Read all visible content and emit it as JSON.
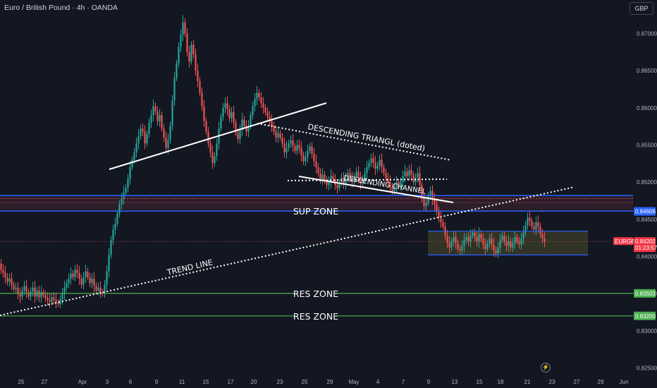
{
  "header": {
    "symbol_title": "Euro / British Pound · 4h · OANDA",
    "currency": "GBP"
  },
  "chart_data": {
    "type": "candlestick",
    "symbol": "EURGBP",
    "interval": "4h",
    "y_ticks": [
      "0.87000",
      "0.86500",
      "0.86000",
      "0.85500",
      "0.85000",
      "0.84500",
      "0.84000",
      "0.83500",
      "0.83000",
      "0.82500"
    ],
    "ylim": [
      0.8223,
      0.8745
    ],
    "x_ticks": [
      "25",
      "27",
      "Apr",
      "3",
      "6",
      "9",
      "11",
      "15",
      "17",
      "20",
      "23",
      "25",
      "29",
      "May",
      "4",
      "7",
      "9",
      "13",
      "15",
      "18",
      "21",
      "23",
      "27",
      "29",
      "Jun"
    ],
    "price_tags": [
      {
        "label": "EURGBP",
        "value": "0.84202",
        "countdown": "01:23:57",
        "color": "#f23645"
      },
      {
        "value": "0.84606",
        "color": "#2962ff"
      },
      {
        "value": "0.83503",
        "color": "#4caf50"
      },
      {
        "value": "0.83200",
        "color": "#4caf50"
      }
    ],
    "levels": {
      "sup_zone_top": 0.8482,
      "sup_zone_bottom": 0.8461,
      "res_zone_1": 0.83503,
      "res_zone_2": 0.832,
      "current": 0.84202,
      "range_box_top": 0.8434,
      "range_box_bottom": 0.8402
    },
    "annotations": {
      "descending_triangle": "DESCENDING TRIANGL (doted)",
      "descending_channel": "DESCENDING CHANNEL",
      "sup_zone": "SUP ZONE",
      "trend_line": "TREND LINE",
      "res_zone_1": "RES ZONE",
      "res_zone_2": "RES ZONE"
    },
    "colors": {
      "background": "#131722",
      "up": "#26a69a",
      "down": "#ef5350",
      "sup_zone_line": "#2962ff",
      "res_zone_line": "#4caf50",
      "annotation": "#ffffff"
    },
    "price_path": [
      [
        0,
        0.839
      ],
      [
        3,
        0.8382
      ],
      [
        6,
        0.8378
      ],
      [
        9,
        0.8372
      ],
      [
        12,
        0.8366
      ],
      [
        15,
        0.837
      ],
      [
        18,
        0.8362
      ],
      [
        21,
        0.8356
      ],
      [
        24,
        0.8358
      ],
      [
        27,
        0.8349
      ],
      [
        30,
        0.8346
      ],
      [
        33,
        0.8354
      ],
      [
        36,
        0.836
      ],
      [
        39,
        0.8352
      ],
      [
        42,
        0.8346
      ],
      [
        45,
        0.8353
      ],
      [
        48,
        0.8358
      ],
      [
        51,
        0.8346
      ],
      [
        54,
        0.8354
      ],
      [
        57,
        0.8345
      ],
      [
        60,
        0.8352
      ],
      [
        63,
        0.8348
      ],
      [
        66,
        0.8344
      ],
      [
        69,
        0.8341
      ],
      [
        72,
        0.8339
      ],
      [
        75,
        0.8345
      ],
      [
        78,
        0.8342
      ],
      [
        81,
        0.8338
      ],
      [
        84,
        0.8336
      ],
      [
        87,
        0.8342
      ],
      [
        90,
        0.835
      ],
      [
        93,
        0.8358
      ],
      [
        96,
        0.8364
      ],
      [
        99,
        0.837
      ],
      [
        102,
        0.8377
      ],
      [
        105,
        0.8372
      ],
      [
        108,
        0.8382
      ],
      [
        111,
        0.8378
      ],
      [
        114,
        0.837
      ],
      [
        117,
        0.8362
      ],
      [
        120,
        0.8372
      ],
      [
        123,
        0.838
      ],
      [
        126,
        0.8372
      ],
      [
        129,
        0.8364
      ],
      [
        132,
        0.837
      ],
      [
        135,
        0.836
      ],
      [
        138,
        0.8354
      ],
      [
        141,
        0.8358
      ],
      [
        144,
        0.8352
      ],
      [
        147,
        0.835
      ],
      [
        150,
        0.8362
      ],
      [
        153,
        0.838
      ],
      [
        156,
        0.8402
      ],
      [
        159,
        0.8422
      ],
      [
        162,
        0.8436
      ],
      [
        165,
        0.8444
      ],
      [
        168,
        0.8458
      ],
      [
        171,
        0.847
      ],
      [
        174,
        0.8478
      ],
      [
        177,
        0.8486
      ],
      [
        180,
        0.8492
      ],
      [
        183,
        0.8504
      ],
      [
        186,
        0.852
      ],
      [
        189,
        0.853
      ],
      [
        192,
        0.854
      ],
      [
        195,
        0.8552
      ],
      [
        198,
        0.8562
      ],
      [
        201,
        0.8572
      ],
      [
        204,
        0.8568
      ],
      [
        207,
        0.8552
      ],
      [
        210,
        0.8565
      ],
      [
        213,
        0.858
      ],
      [
        216,
        0.859
      ],
      [
        219,
        0.8602
      ],
      [
        222,
        0.8595
      ],
      [
        225,
        0.8582
      ],
      [
        228,
        0.859
      ],
      [
        231,
        0.8572
      ],
      [
        234,
        0.856
      ],
      [
        237,
        0.8546
      ],
      [
        240,
        0.8556
      ],
      [
        243,
        0.8576
      ],
      [
        246,
        0.861
      ],
      [
        249,
        0.864
      ],
      [
        252,
        0.866
      ],
      [
        255,
        0.8682
      ],
      [
        258,
        0.8698
      ],
      [
        261,
        0.8715
      ],
      [
        264,
        0.87
      ],
      [
        267,
        0.8675
      ],
      [
        270,
        0.8662
      ],
      [
        273,
        0.8685
      ],
      [
        276,
        0.8672
      ],
      [
        279,
        0.865
      ],
      [
        282,
        0.8636
      ],
      [
        285,
        0.862
      ],
      [
        288,
        0.8602
      ],
      [
        291,
        0.8582
      ],
      [
        294,
        0.8568
      ],
      [
        297,
        0.8552
      ],
      [
        300,
        0.854
      ],
      [
        303,
        0.8526
      ],
      [
        306,
        0.8535
      ],
      [
        309,
        0.8552
      ],
      [
        312,
        0.8572
      ],
      [
        315,
        0.8588
      ],
      [
        318,
        0.86
      ],
      [
        321,
        0.8606
      ],
      [
        324,
        0.8598
      ],
      [
        327,
        0.8586
      ],
      [
        330,
        0.8594
      ],
      [
        333,
        0.858
      ],
      [
        336,
        0.8566
      ],
      [
        339,
        0.8558
      ],
      [
        342,
        0.857
      ],
      [
        345,
        0.8584
      ],
      [
        348,
        0.8576
      ],
      [
        351,
        0.8568
      ],
      [
        354,
        0.8575
      ],
      [
        357,
        0.859
      ],
      [
        360,
        0.8602
      ],
      [
        363,
        0.8612
      ],
      [
        366,
        0.862
      ],
      [
        369,
        0.8614
      ],
      [
        372,
        0.8606
      ],
      [
        375,
        0.86
      ],
      [
        378,
        0.8594
      ],
      [
        381,
        0.8588
      ],
      [
        384,
        0.8582
      ],
      [
        387,
        0.8576
      ],
      [
        390,
        0.8568
      ],
      [
        393,
        0.856
      ],
      [
        396,
        0.8566
      ],
      [
        399,
        0.856
      ],
      [
        402,
        0.8552
      ],
      [
        405,
        0.854
      ],
      [
        408,
        0.8546
      ],
      [
        411,
        0.8552
      ],
      [
        414,
        0.8556
      ],
      [
        417,
        0.8548
      ],
      [
        420,
        0.8542
      ],
      [
        423,
        0.855
      ],
      [
        426,
        0.8546
      ],
      [
        429,
        0.8536
      ],
      [
        432,
        0.8528
      ],
      [
        435,
        0.8534
      ],
      [
        438,
        0.8542
      ],
      [
        441,
        0.8548
      ],
      [
        444,
        0.8538
      ],
      [
        447,
        0.8528
      ],
      [
        450,
        0.852
      ],
      [
        453,
        0.8512
      ],
      [
        456,
        0.8504
      ],
      [
        459,
        0.851
      ],
      [
        462,
        0.8502
      ],
      [
        465,
        0.8496
      ],
      [
        468,
        0.85
      ],
      [
        471,
        0.8508
      ],
      [
        474,
        0.8504
      ],
      [
        477,
        0.8496
      ],
      [
        480,
        0.8492
      ],
      [
        483,
        0.85
      ],
      [
        486,
        0.8506
      ],
      [
        489,
        0.8498
      ],
      [
        492,
        0.8504
      ],
      [
        495,
        0.8512
      ],
      [
        498,
        0.8506
      ],
      [
        501,
        0.85
      ],
      [
        504,
        0.8508
      ],
      [
        507,
        0.8514
      ],
      [
        510,
        0.8505
      ],
      [
        513,
        0.8498
      ],
      [
        516,
        0.8504
      ],
      [
        519,
        0.8512
      ],
      [
        522,
        0.852
      ],
      [
        525,
        0.8526
      ],
      [
        528,
        0.8532
      ],
      [
        531,
        0.8526
      ],
      [
        534,
        0.8518
      ],
      [
        537,
        0.8522
      ],
      [
        540,
        0.853
      ],
      [
        543,
        0.852
      ],
      [
        546,
        0.8512
      ],
      [
        549,
        0.8505
      ],
      [
        552,
        0.85
      ],
      [
        555,
        0.8494
      ],
      [
        558,
        0.8488
      ],
      [
        561,
        0.8492
      ],
      [
        564,
        0.85
      ],
      [
        567,
        0.8494
      ],
      [
        570,
        0.85
      ],
      [
        573,
        0.8508
      ],
      [
        576,
        0.8514
      ],
      [
        579,
        0.8508
      ],
      [
        582,
        0.8516
      ],
      [
        585,
        0.851
      ],
      [
        588,
        0.85
      ],
      [
        591,
        0.8506
      ],
      [
        594,
        0.8512
      ],
      [
        597,
        0.8496
      ],
      [
        600,
        0.8478
      ],
      [
        603,
        0.8468
      ],
      [
        606,
        0.8472
      ],
      [
        609,
        0.8482
      ],
      [
        612,
        0.8488
      ],
      [
        615,
        0.8476
      ],
      [
        618,
        0.847
      ],
      [
        621,
        0.846
      ],
      [
        624,
        0.8452
      ],
      [
        627,
        0.8446
      ],
      [
        630,
        0.844
      ],
      [
        633,
        0.8428
      ],
      [
        636,
        0.8418
      ],
      [
        639,
        0.8412
      ],
      [
        642,
        0.842
      ],
      [
        645,
        0.8426
      ],
      [
        648,
        0.8418
      ],
      [
        651,
        0.841
      ],
      [
        654,
        0.8408
      ],
      [
        657,
        0.8414
      ],
      [
        660,
        0.8422
      ],
      [
        663,
        0.8426
      ],
      [
        666,
        0.842
      ],
      [
        669,
        0.8428
      ],
      [
        672,
        0.8432
      ],
      [
        675,
        0.8426
      ],
      [
        678,
        0.842
      ],
      [
        681,
        0.843
      ],
      [
        684,
        0.8424
      ],
      [
        687,
        0.8416
      ],
      [
        690,
        0.841
      ],
      [
        693,
        0.8418
      ],
      [
        696,
        0.8424
      ],
      [
        699,
        0.8416
      ],
      [
        702,
        0.8408
      ],
      [
        705,
        0.8404
      ],
      [
        708,
        0.8412
      ],
      [
        711,
        0.8422
      ],
      [
        714,
        0.8428
      ],
      [
        717,
        0.842
      ],
      [
        720,
        0.8414
      ],
      [
        723,
        0.842
      ],
      [
        726,
        0.8412
      ],
      [
        729,
        0.8418
      ],
      [
        732,
        0.8426
      ],
      [
        735,
        0.842
      ],
      [
        738,
        0.8416
      ],
      [
        741,
        0.8424
      ],
      [
        744,
        0.8432
      ],
      [
        747,
        0.8442
      ],
      [
        750,
        0.8452
      ],
      [
        753,
        0.8448
      ],
      [
        756,
        0.844
      ],
      [
        759,
        0.8436
      ],
      [
        762,
        0.8446
      ],
      [
        765,
        0.844
      ],
      [
        768,
        0.843
      ],
      [
        771,
        0.8424
      ],
      [
        774,
        0.842
      ]
    ]
  }
}
